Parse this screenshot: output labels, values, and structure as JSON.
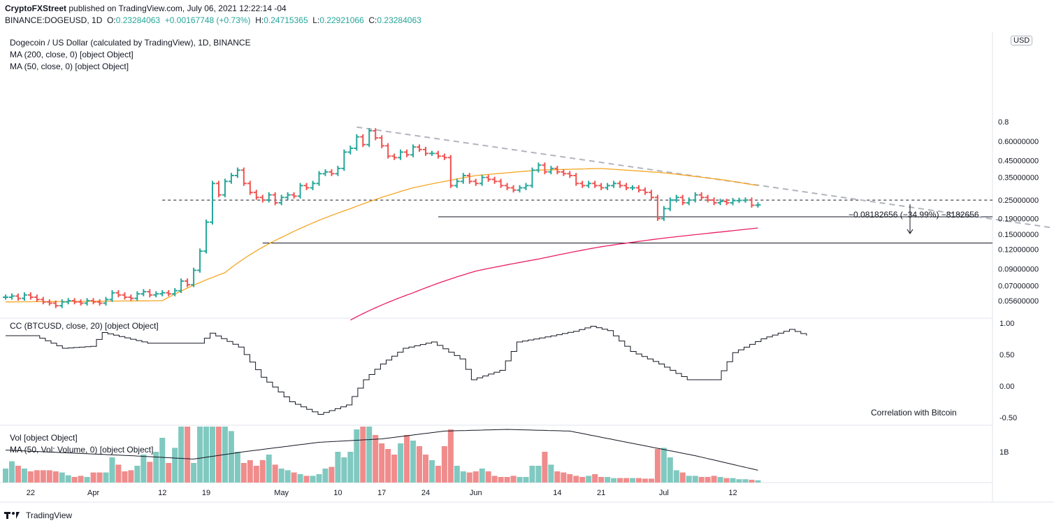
{
  "header": {
    "publisher": "CryptoFXStreet",
    "published_text": "published on TradingView.com, July 06, 2021 12:22:14 -04",
    "symbol": "BINANCE:DOGEUSD, 1D",
    "o_label": "O:",
    "o_value": "0.23284063",
    "change_value": "+0.00167748 (+0.73%)",
    "h_label": "H:",
    "h_value": "0.24715365",
    "l_label": "L:",
    "l_value": "0.22921066",
    "c_label": "C:",
    "c_value": "0.23284063"
  },
  "legend": {
    "title": "Dogecoin / US Dollar (calculated by TradingView), 1D, BINANCE",
    "ma200": "MA (200, close, 0) [object Object]",
    "ma50": "MA (50, close, 0) [object Object]",
    "cc": "CC (BTCUSD, close, 20) [object Object]",
    "vol": "Vol [object Object]",
    "vol_ma": "MA (50, Vol: Volume, 0) [object Object]"
  },
  "currency_badge": "USD",
  "correlation_note": "Correlation with Bitcoin",
  "measure_label": "−0.08182656 (−34.99%) −8182656",
  "footer": {
    "brand": "TradingView"
  },
  "colors": {
    "up": "#26a69a",
    "down": "#ef5350",
    "ma50": "#f5a623",
    "ma200": "#e91e63",
    "vol_up": "#80c9c0",
    "vol_down": "#f08c8c",
    "trendline": "#b2b5be"
  },
  "chart_data": [
    {
      "type": "ohlc",
      "name": "DOGEUSD price",
      "x_labels": [
        "22",
        "Apr",
        "12",
        "19",
        "May",
        "10",
        "17",
        "24",
        "Jun",
        "14",
        "21",
        "Jul",
        "12"
      ],
      "y_ticks": [
        "0.8",
        "0.60000000",
        "0.45000000",
        "0.35000000",
        "0.25000000",
        "0.19000000",
        "0.15000000",
        "0.12000000",
        "0.09000000",
        "0.07000000",
        "0.05600000"
      ],
      "y_tick_values": [
        0.8,
        0.6,
        0.45,
        0.35,
        0.25,
        0.19,
        0.15,
        0.12,
        0.09,
        0.07,
        0.056
      ],
      "scale": "log",
      "start_date": "2021-03-18",
      "closes": [
        0.059,
        0.06,
        0.058,
        0.061,
        0.059,
        0.057,
        0.055,
        0.054,
        0.052,
        0.055,
        0.056,
        0.055,
        0.054,
        0.056,
        0.055,
        0.054,
        0.057,
        0.063,
        0.061,
        0.059,
        0.058,
        0.062,
        0.064,
        0.061,
        0.062,
        0.063,
        0.062,
        0.065,
        0.075,
        0.071,
        0.088,
        0.117,
        0.18,
        0.32,
        0.27,
        0.33,
        0.36,
        0.39,
        0.32,
        0.28,
        0.26,
        0.25,
        0.27,
        0.24,
        0.26,
        0.27,
        0.265,
        0.31,
        0.3,
        0.32,
        0.37,
        0.38,
        0.37,
        0.4,
        0.51,
        0.54,
        0.64,
        0.57,
        0.7,
        0.63,
        0.56,
        0.48,
        0.47,
        0.51,
        0.49,
        0.55,
        0.53,
        0.5,
        0.5,
        0.48,
        0.47,
        0.31,
        0.33,
        0.36,
        0.33,
        0.32,
        0.35,
        0.34,
        0.33,
        0.31,
        0.3,
        0.29,
        0.3,
        0.31,
        0.39,
        0.42,
        0.38,
        0.4,
        0.38,
        0.37,
        0.36,
        0.32,
        0.31,
        0.32,
        0.31,
        0.3,
        0.31,
        0.32,
        0.31,
        0.3,
        0.3,
        0.29,
        0.28,
        0.26,
        0.19,
        0.22,
        0.25,
        0.26,
        0.24,
        0.25,
        0.27,
        0.26,
        0.25,
        0.24,
        0.245,
        0.24,
        0.248,
        0.249,
        0.25,
        0.2315,
        0.2328
      ],
      "ma50_anchors": [
        [
          0,
          0.055
        ],
        [
          25,
          0.056
        ],
        [
          35,
          0.085
        ],
        [
          45,
          0.15
        ],
        [
          55,
          0.22
        ],
        [
          65,
          0.3
        ],
        [
          75,
          0.36
        ],
        [
          85,
          0.39
        ],
        [
          95,
          0.4
        ],
        [
          105,
          0.375
        ],
        [
          115,
          0.335
        ],
        [
          120,
          0.31
        ]
      ],
      "ma200_anchors": [
        [
          55,
          0.042
        ],
        [
          65,
          0.063
        ],
        [
          75,
          0.087
        ],
        [
          85,
          0.104
        ],
        [
          95,
          0.125
        ],
        [
          105,
          0.142
        ],
        [
          115,
          0.157
        ],
        [
          120,
          0.165
        ]
      ],
      "horizontal_levels": [
        {
          "value": 0.25,
          "style": "dashed",
          "from_day": 25,
          "to": "end"
        },
        {
          "value": 0.195,
          "style": "solid",
          "from_day": 69,
          "to": "end"
        },
        {
          "value": 0.132,
          "style": "solid",
          "from_day": 41,
          "to": "end"
        }
      ],
      "trendline": {
        "from": [
          56,
          0.74
        ],
        "to": [
          127,
          0.2
        ]
      },
      "measure": {
        "from": 0.235,
        "to": 0.152,
        "change": -0.08182656,
        "change_pct": -34.99
      }
    },
    {
      "type": "line",
      "name": "CC (BTCUSD, close, 20)",
      "y_ticks": [
        "1.00",
        "0.50",
        "0.00",
        "-0.50"
      ],
      "y_tick_values": [
        1.0,
        0.5,
        0.0,
        -0.5
      ],
      "anchors": [
        [
          0,
          0.8
        ],
        [
          5,
          0.8
        ],
        [
          10,
          0.6
        ],
        [
          15,
          0.63
        ],
        [
          17,
          0.85
        ],
        [
          25,
          0.68
        ],
        [
          34,
          0.68
        ],
        [
          36,
          0.84
        ],
        [
          41,
          0.62
        ],
        [
          45,
          0.14
        ],
        [
          50,
          -0.25
        ],
        [
          55,
          -0.45
        ],
        [
          60,
          -0.3
        ],
        [
          63,
          0.1
        ],
        [
          66,
          0.35
        ],
        [
          70,
          0.6
        ],
        [
          75,
          0.7
        ],
        [
          80,
          0.43
        ],
        [
          82,
          0.1
        ],
        [
          87,
          0.25
        ],
        [
          90,
          0.7
        ],
        [
          95,
          0.78
        ],
        [
          100,
          0.87
        ],
        [
          103,
          0.95
        ],
        [
          106,
          0.88
        ],
        [
          110,
          0.55
        ],
        [
          115,
          0.35
        ],
        [
          120,
          0.1
        ],
        [
          125,
          0.1
        ],
        [
          128,
          0.53
        ],
        [
          133,
          0.75
        ],
        [
          138,
          0.9
        ],
        [
          141,
          0.8
        ]
      ],
      "end_day": 141
    },
    {
      "type": "bar",
      "name": "Volume",
      "y_ticks": [
        "1B"
      ],
      "values_relative": [
        0.25,
        0.38,
        0.3,
        0.25,
        0.2,
        0.22,
        0.22,
        0.22,
        0.2,
        0.18,
        0.13,
        0.1,
        0.12,
        0.1,
        0.18,
        0.18,
        0.18,
        0.45,
        0.32,
        0.2,
        0.22,
        0.3,
        0.5,
        0.37,
        0.55,
        0.8,
        0.35,
        0.62,
        1.0,
        1.0,
        0.35,
        1.0,
        1.0,
        1.0,
        1.0,
        1.0,
        0.92,
        0.55,
        0.35,
        0.4,
        0.3,
        0.4,
        0.5,
        0.32,
        0.25,
        0.22,
        0.18,
        0.15,
        0.12,
        0.12,
        0.15,
        0.25,
        0.28,
        0.55,
        0.45,
        0.55,
        0.95,
        1.0,
        1.0,
        0.85,
        0.7,
        0.6,
        0.5,
        0.7,
        0.85,
        0.75,
        0.65,
        0.5,
        0.4,
        0.3,
        0.65,
        0.95,
        0.3,
        0.2,
        0.18,
        0.2,
        0.25,
        0.2,
        0.12,
        0.1,
        0.1,
        0.12,
        0.1,
        0.1,
        0.3,
        0.3,
        0.55,
        0.32,
        0.2,
        0.18,
        0.15,
        0.12,
        0.1,
        0.12,
        0.15,
        0.1,
        0.1,
        0.08,
        0.08,
        0.08,
        0.08,
        0.08,
        0.07,
        0.07,
        0.6,
        0.62,
        0.45,
        0.22,
        0.18,
        0.12,
        0.12,
        0.1,
        0.1,
        0.12,
        0.1,
        0.08,
        0.08,
        0.06,
        0.06,
        0.05,
        0.04
      ],
      "ma_anchors": [
        [
          0,
          0.58
        ],
        [
          20,
          0.48
        ],
        [
          30,
          0.42
        ],
        [
          38,
          0.55
        ],
        [
          50,
          0.72
        ],
        [
          60,
          0.78
        ],
        [
          70,
          0.92
        ],
        [
          80,
          0.95
        ],
        [
          90,
          0.92
        ],
        [
          100,
          0.7
        ],
        [
          110,
          0.48
        ],
        [
          115,
          0.35
        ],
        [
          120,
          0.22
        ]
      ]
    }
  ]
}
